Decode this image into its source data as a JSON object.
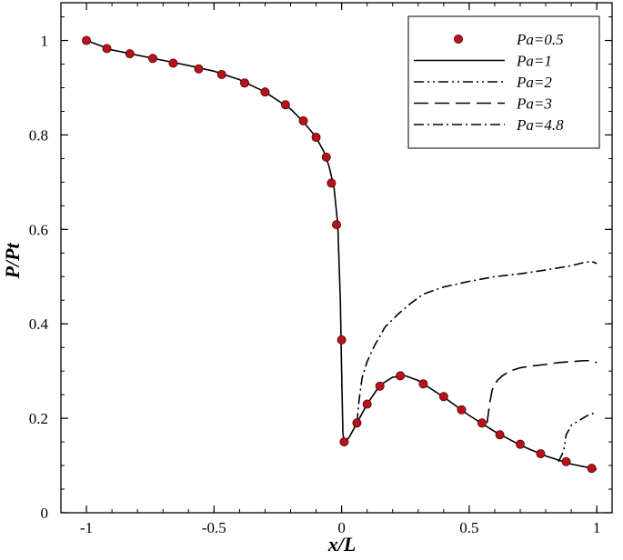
{
  "chart_data": {
    "type": "line",
    "title": "",
    "xlabel": "x/L",
    "ylabel": "P/Pt",
    "xlim": [
      -1.1,
      1.06
    ],
    "ylim": [
      0,
      1.08
    ],
    "xticks": [
      -1,
      -0.5,
      0,
      0.5,
      1
    ],
    "xtick_labels": [
      "-1",
      "-0.5",
      "0",
      "0.5",
      "1"
    ],
    "yticks": [
      0,
      0.2,
      0.4,
      0.6,
      0.8,
      1
    ],
    "ytick_labels": [
      "0",
      "0.2",
      "0.4",
      "0.6",
      "0.8",
      "1"
    ],
    "grid": false,
    "legend_position": "top-right",
    "series": [
      {
        "name": "Pa=0.5",
        "style": "markers",
        "color": "#b5121b",
        "x": [
          -1,
          -0.92,
          -0.83,
          -0.74,
          -0.66,
          -0.56,
          -0.47,
          -0.38,
          -0.3,
          -0.22,
          -0.15,
          -0.1,
          -0.06,
          -0.04,
          -0.02,
          0,
          0.01,
          0.06,
          0.1,
          0.15,
          0.23,
          0.32,
          0.4,
          0.47,
          0.55,
          0.62,
          0.7,
          0.78,
          0.88,
          0.98
        ],
        "y": [
          1.0,
          0.983,
          0.972,
          0.962,
          0.952,
          0.94,
          0.928,
          0.91,
          0.891,
          0.864,
          0.83,
          0.795,
          0.753,
          0.698,
          0.61,
          0.366,
          0.15,
          0.19,
          0.23,
          0.268,
          0.29,
          0.273,
          0.246,
          0.218,
          0.19,
          0.165,
          0.145,
          0.125,
          0.108,
          0.094
        ]
      },
      {
        "name": "Pa=1",
        "style": "solid",
        "color": "#000000",
        "x": [
          -1,
          -0.9,
          -0.8,
          -0.7,
          -0.6,
          -0.5,
          -0.4,
          -0.3,
          -0.2,
          -0.15,
          -0.1,
          -0.07,
          -0.05,
          -0.03,
          -0.015,
          -0.005,
          0,
          0.005,
          0.01,
          0.03,
          0.06,
          0.1,
          0.15,
          0.2,
          0.25,
          0.3,
          0.4,
          0.5,
          0.6,
          0.7,
          0.8,
          0.9,
          1.0
        ],
        "y": [
          1.0,
          0.98,
          0.969,
          0.958,
          0.947,
          0.935,
          0.917,
          0.891,
          0.855,
          0.828,
          0.795,
          0.765,
          0.735,
          0.69,
          0.61,
          0.45,
          0.3,
          0.17,
          0.148,
          0.16,
          0.19,
          0.23,
          0.27,
          0.287,
          0.29,
          0.28,
          0.245,
          0.206,
          0.172,
          0.143,
          0.12,
          0.103,
          0.092
        ]
      },
      {
        "name": "Pa=2",
        "style": "dash-dot-dot",
        "color": "#000000",
        "x": [
          0.85,
          0.87,
          0.88,
          0.9,
          0.93,
          0.96,
          1.0
        ],
        "y": [
          0.108,
          0.13,
          0.165,
          0.185,
          0.195,
          0.205,
          0.213
        ]
      },
      {
        "name": "Pa=3",
        "style": "long-dash",
        "color": "#000000",
        "x": [
          0.57,
          0.58,
          0.59,
          0.6,
          0.61,
          0.63,
          0.66,
          0.7,
          0.75,
          0.8,
          0.85,
          0.9,
          0.95,
          0.98,
          1.0
        ],
        "y": [
          0.19,
          0.23,
          0.26,
          0.27,
          0.28,
          0.29,
          0.3,
          0.307,
          0.311,
          0.314,
          0.318,
          0.32,
          0.322,
          0.322,
          0.318
        ]
      },
      {
        "name": "Pa=4.8",
        "style": "dash-dot",
        "color": "#000000",
        "x": [
          0.06,
          0.065,
          0.07,
          0.08,
          0.1,
          0.13,
          0.17,
          0.22,
          0.27,
          0.32,
          0.4,
          0.5,
          0.6,
          0.7,
          0.8,
          0.9,
          0.95,
          0.98,
          1.0
        ],
        "y": [
          0.19,
          0.22,
          0.245,
          0.285,
          0.32,
          0.355,
          0.393,
          0.42,
          0.443,
          0.463,
          0.478,
          0.49,
          0.5,
          0.506,
          0.514,
          0.523,
          0.53,
          0.532,
          0.528
        ]
      }
    ]
  }
}
